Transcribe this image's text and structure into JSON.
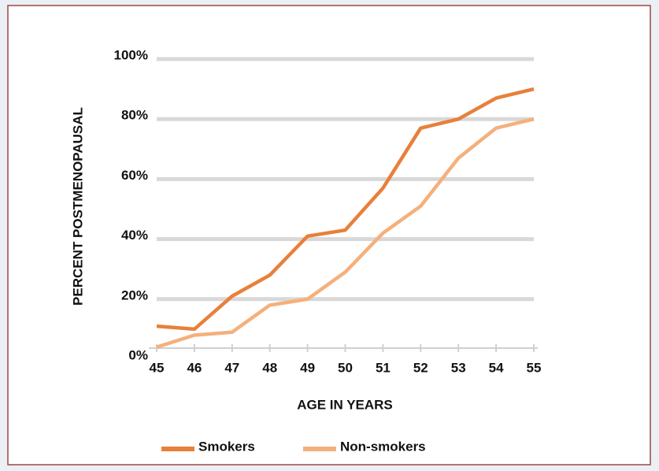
{
  "chart_data": {
    "type": "line",
    "x_label": "AGE IN YEARS",
    "y_label": "PERCENT POSTMENOPAUSAL",
    "x": [
      45,
      46,
      47,
      48,
      49,
      50,
      51,
      52,
      53,
      54,
      55
    ],
    "xlim": [
      45,
      55
    ],
    "xticks": [
      45,
      46,
      47,
      48,
      49,
      50,
      51,
      52,
      53,
      54,
      55
    ],
    "ylim": [
      0,
      100
    ],
    "yticks": [
      {
        "value": 0,
        "label": "0%"
      },
      {
        "value": 20,
        "label": "20%"
      },
      {
        "value": 40,
        "label": "40%"
      },
      {
        "value": 60,
        "label": "60%"
      },
      {
        "value": 80,
        "label": "80%"
      },
      {
        "value": 100,
        "label": "100%"
      }
    ],
    "grid": true,
    "legend": "bottom",
    "series": [
      {
        "name": "Smokers",
        "color": "#e8803a",
        "values": [
          11,
          10,
          21,
          28,
          41,
          43,
          57,
          77,
          80,
          87,
          90
        ]
      },
      {
        "name": "Non-smokers",
        "color": "#f4b07c",
        "values": [
          4,
          8,
          9,
          18,
          20,
          29,
          42,
          51,
          67,
          77,
          80
        ]
      }
    ]
  }
}
